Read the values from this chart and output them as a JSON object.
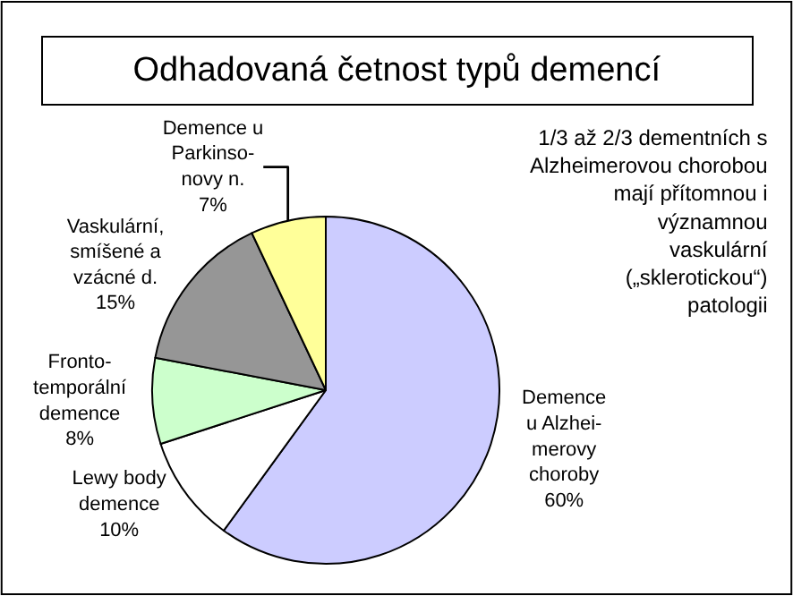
{
  "chart_data": {
    "type": "pie",
    "title": "Odhadovaná četnost typů demencí",
    "categories": [
      "Demence\nu Alzhei-\nmerovy\nchoroby",
      "Lewy body\ndemence",
      "Fronto-\ntemporální\ndemence",
      "Vaskulární,\nsmíšené a\nvzácné d.",
      "Demence u\nParkinso-\nnovy n."
    ],
    "values": [
      60,
      10,
      8,
      15,
      7
    ],
    "value_labels": [
      "60%",
      "10%",
      "8%",
      "15%",
      "7%"
    ],
    "colors": [
      "#ccccff",
      "#ffffff",
      "#ccffcc",
      "#969696",
      "#ffff99"
    ],
    "annotations": [
      "1/3 až 2/3 dementních s\nAlzheimerovou chorobou\nmají přítomnou i\nvýznamnou\nvaskulární\n(„sklerotickou“)\npatologii"
    ],
    "legend": false
  }
}
